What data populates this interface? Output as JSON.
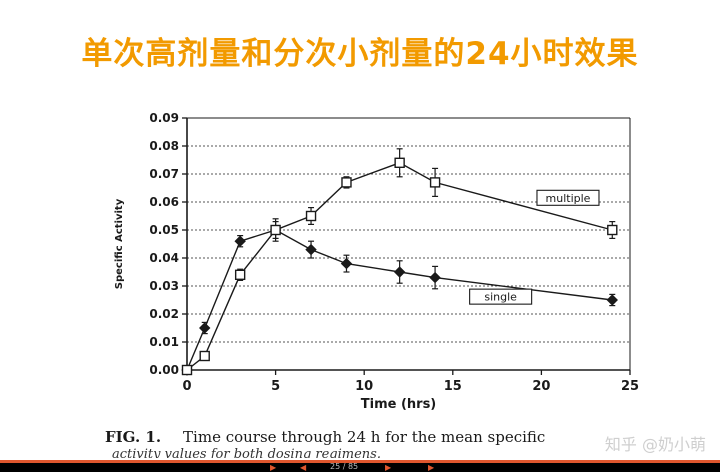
{
  "slide": {
    "title": "单次高剂量和分次小剂量的24小时效果",
    "caption_fig": "FIG. 1.",
    "caption_text": "Time course through 24 h for the mean specific",
    "caption_line2": "activity values for both dosing regimens.",
    "watermark": "知乎 @奶小萌",
    "page_indicator": "25 / 85"
  },
  "chart_data": {
    "type": "line",
    "xlabel": "Time (hrs)",
    "ylabel": "Specific Activity",
    "xlim": [
      0,
      25
    ],
    "ylim": [
      0,
      0.09
    ],
    "x_ticks": [
      0,
      5,
      10,
      15,
      20,
      25
    ],
    "y_ticks": [
      "0.00",
      "0.01",
      "0.02",
      "0.03",
      "0.04",
      "0.05",
      "0.06",
      "0.07",
      "0.08",
      "0.09"
    ],
    "grid": true,
    "series": [
      {
        "name": "single",
        "marker": "diamond",
        "x": [
          0,
          1,
          3,
          5,
          7,
          9,
          12,
          14,
          24
        ],
        "y": [
          0.0,
          0.015,
          0.046,
          0.05,
          0.043,
          0.038,
          0.035,
          0.033,
          0.025
        ],
        "err": [
          0.0,
          0.002,
          0.002,
          0.003,
          0.003,
          0.003,
          0.004,
          0.004,
          0.002
        ]
      },
      {
        "name": "multiple",
        "marker": "square",
        "x": [
          0,
          1,
          3,
          5,
          7,
          9,
          12,
          14,
          24
        ],
        "y": [
          0.0,
          0.005,
          0.034,
          0.05,
          0.055,
          0.067,
          0.074,
          0.067,
          0.05
        ],
        "err": [
          0.0,
          0.001,
          0.002,
          0.004,
          0.003,
          0.002,
          0.005,
          0.005,
          0.003
        ]
      }
    ]
  },
  "colors": {
    "title": "#f29a00",
    "ink": "#1a1a1a",
    "bottom_accent": "#e0572e"
  }
}
